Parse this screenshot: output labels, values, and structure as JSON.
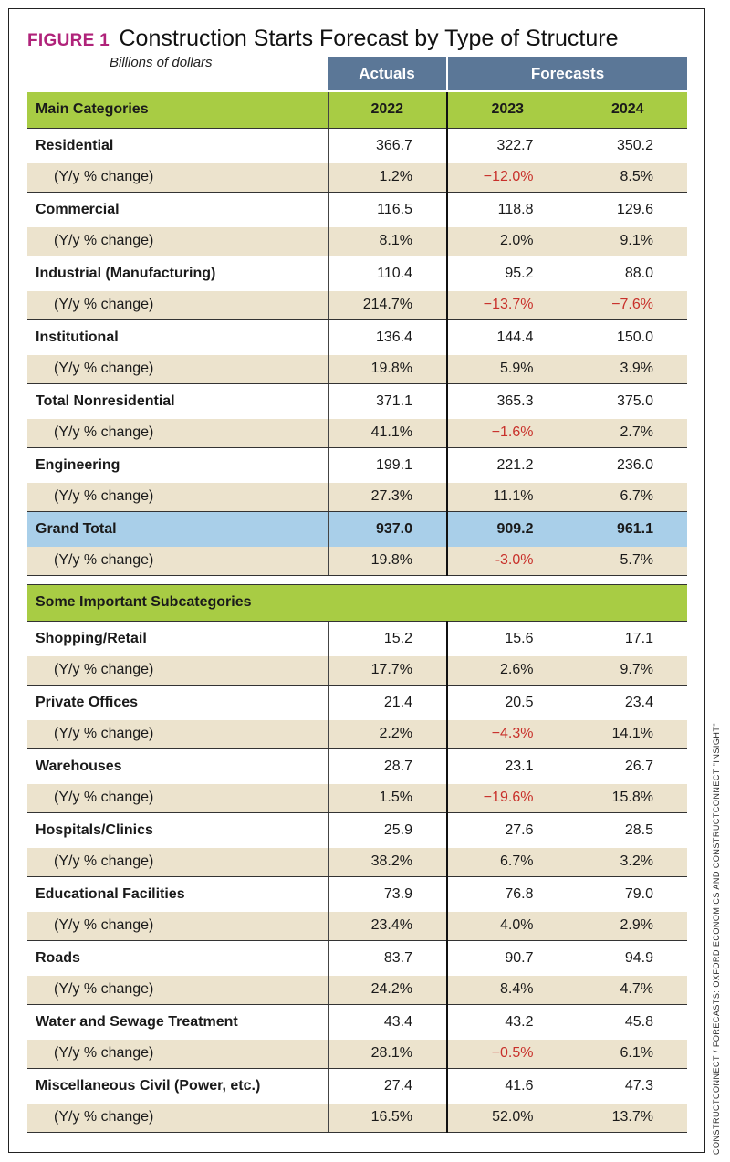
{
  "figure": {
    "label": "FIGURE 1",
    "title": "Construction Starts Forecast by Type of Structure",
    "subtitle": "Billions of dollars"
  },
  "header_groups": {
    "actuals": "Actuals",
    "forecasts": "Forecasts"
  },
  "main_header": {
    "label": "Main Categories",
    "years": [
      "2022",
      "2023",
      "2024"
    ]
  },
  "main_rows": [
    {
      "name": "Residential",
      "values": [
        "366.7",
        "322.7",
        "350.2"
      ],
      "change_label": "(Y/y % change)",
      "changes": [
        "1.2%",
        "−12.0%",
        "8.5%"
      ]
    },
    {
      "name": "Commercial",
      "values": [
        "116.5",
        "118.8",
        "129.6"
      ],
      "change_label": "(Y/y % change)",
      "changes": [
        "8.1%",
        "2.0%",
        "9.1%"
      ]
    },
    {
      "name": "Industrial (Manufacturing)",
      "values": [
        "110.4",
        "95.2",
        "88.0"
      ],
      "change_label": "(Y/y % change)",
      "changes": [
        "214.7%",
        "−13.7%",
        "−7.6%"
      ]
    },
    {
      "name": "Institutional",
      "values": [
        "136.4",
        "144.4",
        "150.0"
      ],
      "change_label": "(Y/y % change)",
      "changes": [
        "19.8%",
        "5.9%",
        "3.9%"
      ]
    },
    {
      "name": "Total Nonresidential",
      "values": [
        "371.1",
        "365.3",
        "375.0"
      ],
      "change_label": "(Y/y % change)",
      "changes": [
        "41.1%",
        "−1.6%",
        "2.7%"
      ]
    },
    {
      "name": "Engineering",
      "values": [
        "199.1",
        "221.2",
        "236.0"
      ],
      "change_label": "(Y/y % change)",
      "changes": [
        "27.3%",
        "11.1%",
        "6.7%"
      ]
    }
  ],
  "grand_total": {
    "name": "Grand Total",
    "values": [
      "937.0",
      "909.2",
      "961.1"
    ],
    "change_label": "(Y/y % change)",
    "changes": [
      "19.8%",
      "-3.0%",
      "5.7%"
    ]
  },
  "sub_header": {
    "label": "Some Important Subcategories"
  },
  "sub_rows": [
    {
      "name": "Shopping/Retail",
      "values": [
        "15.2",
        "15.6",
        "17.1"
      ],
      "change_label": "(Y/y % change)",
      "changes": [
        "17.7%",
        "2.6%",
        "9.7%"
      ]
    },
    {
      "name": "Private Offices",
      "values": [
        "21.4",
        "20.5",
        "23.4"
      ],
      "change_label": "(Y/y % change)",
      "changes": [
        "2.2%",
        "−4.3%",
        "14.1%"
      ]
    },
    {
      "name": "Warehouses",
      "values": [
        "28.7",
        "23.1",
        "26.7"
      ],
      "change_label": "(Y/y % change)",
      "changes": [
        "1.5%",
        "−19.6%",
        "15.8%"
      ]
    },
    {
      "name": "Hospitals/Clinics",
      "values": [
        "25.9",
        "27.6",
        "28.5"
      ],
      "change_label": "(Y/y % change)",
      "changes": [
        "38.2%",
        "6.7%",
        "3.2%"
      ]
    },
    {
      "name": "Educational Facilities",
      "values": [
        "73.9",
        "76.8",
        "79.0"
      ],
      "change_label": "(Y/y % change)",
      "changes": [
        "23.4%",
        "4.0%",
        "2.9%"
      ]
    },
    {
      "name": "Roads",
      "values": [
        "83.7",
        "90.7",
        "94.9"
      ],
      "change_label": "(Y/y % change)",
      "changes": [
        "24.2%",
        "8.4%",
        "4.7%"
      ]
    },
    {
      "name": "Water and Sewage Treatment",
      "values": [
        "43.4",
        "43.2",
        "45.8"
      ],
      "change_label": "(Y/y % change)",
      "changes": [
        "28.1%",
        "−0.5%",
        "6.1%"
      ]
    },
    {
      "name": "Miscellaneous Civil (Power, etc.)",
      "values": [
        "27.4",
        "41.6",
        "47.3"
      ],
      "change_label": "(Y/y % change)",
      "changes": [
        "16.5%",
        "52.0%",
        "13.7%"
      ]
    }
  ],
  "credit": "CONSTRUCTCONNECT / FORECASTS: OXFORD ECONOMICS AND CONSTRUCTCONNECT \"INSIGHT\"",
  "colors": {
    "figure_label": "#b0237a",
    "group_header": "#5b7797",
    "green_band": "#a8cc44",
    "change_row": "#ece3cd",
    "grand_total": "#a9cfe9",
    "negative": "#c8302a"
  }
}
